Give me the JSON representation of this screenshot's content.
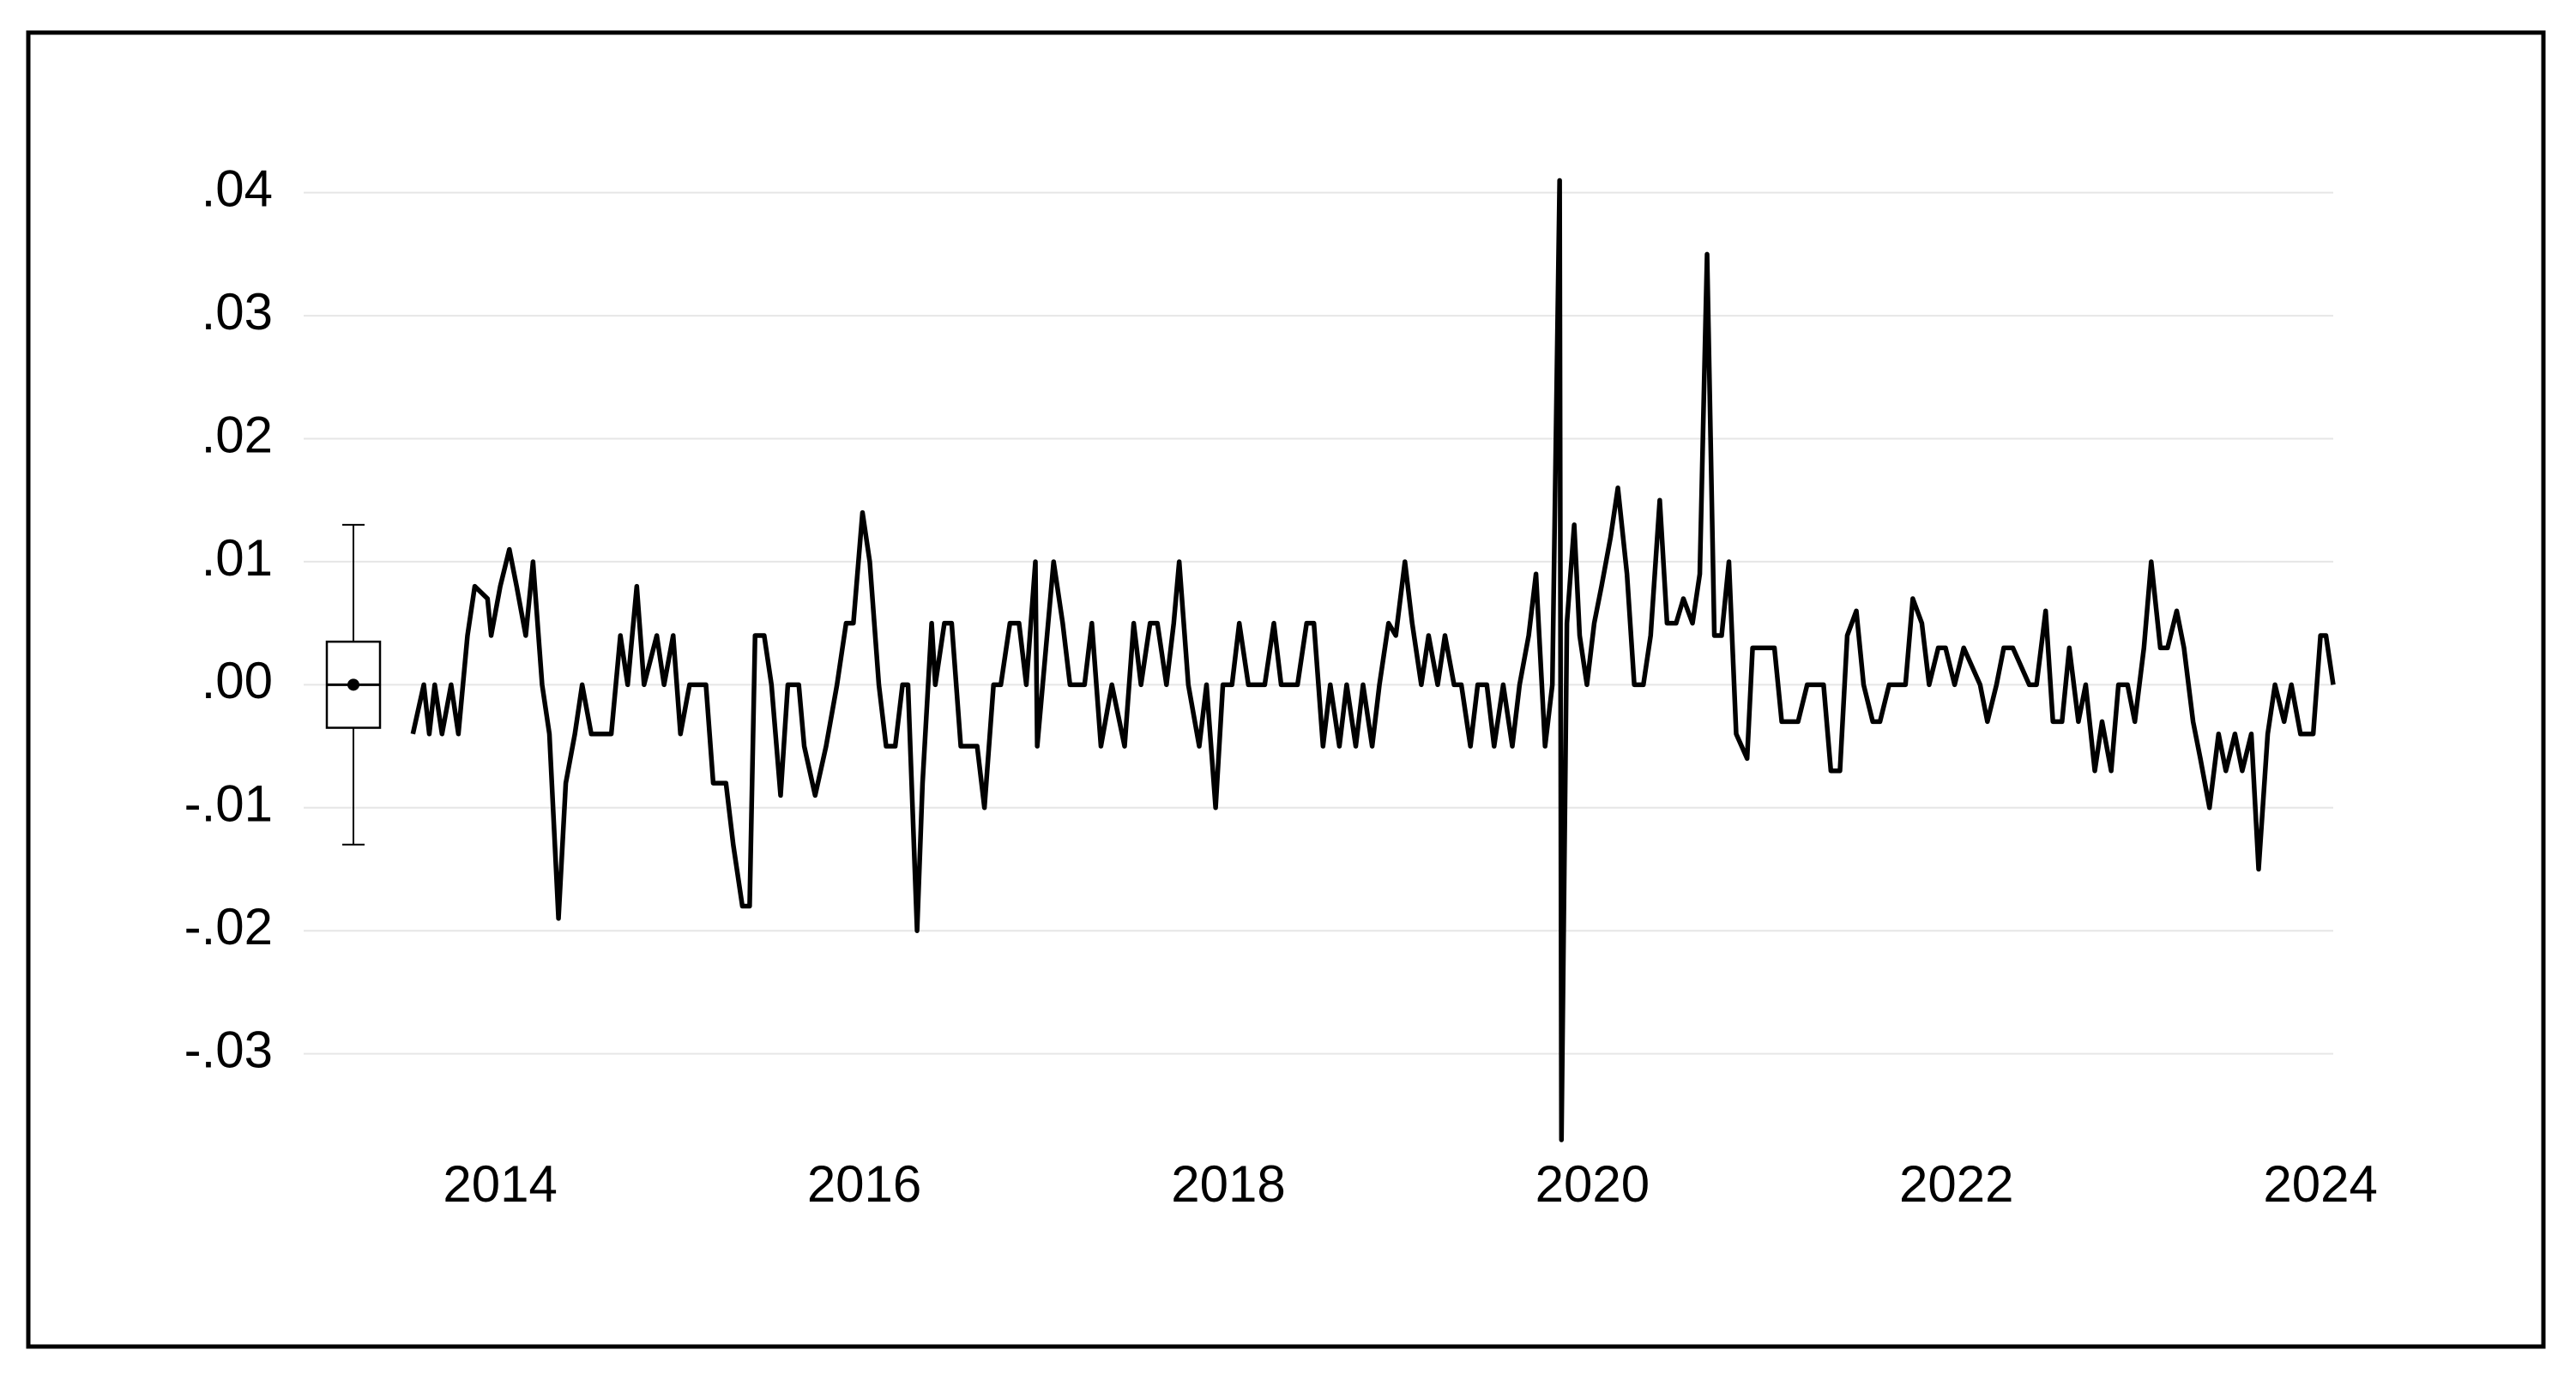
{
  "chart_data": {
    "type": "line",
    "color": "#000000",
    "grid": true,
    "xlim": [
      2012.92,
      2024.07
    ],
    "xticks": [
      2014,
      2016,
      2018,
      2020,
      2022,
      2024
    ],
    "ylim": [
      -0.037,
      0.042
    ],
    "yticks": [
      {
        "value": -0.03,
        "label": "-.03"
      },
      {
        "value": -0.02,
        "label": "-.02"
      },
      {
        "value": -0.01,
        "label": "-.01"
      },
      {
        "value": 0,
        "label": ".00"
      },
      {
        "value": 0.01,
        "label": ".01"
      },
      {
        "value": 0.02,
        "label": ".02"
      },
      {
        "value": 0.03,
        "label": ".03"
      },
      {
        "value": 0.04,
        "label": ".04"
      }
    ],
    "boxplot": {
      "whisker_low": -0.013,
      "q1": -0.0035,
      "median": 0,
      "q3": 0.0035,
      "whisker_high": 0.013,
      "mean": 0
    },
    "x": [
      2013.52,
      2013.58,
      2013.61,
      2013.64,
      2013.68,
      2013.73,
      2013.77,
      2013.82,
      2013.86,
      2013.93,
      2013.95,
      2014.0,
      2014.05,
      2014.09,
      2014.14,
      2014.18,
      2014.23,
      2014.27,
      2014.32,
      2014.36,
      2014.41,
      2014.45,
      2014.5,
      2014.61,
      2014.66,
      2014.7,
      2014.75,
      2014.79,
      2014.86,
      2014.9,
      2014.95,
      2014.99,
      2015.04,
      2015.13,
      2015.17,
      2015.24,
      2015.28,
      2015.33,
      2015.37,
      2015.4,
      2015.45,
      2015.49,
      2015.54,
      2015.58,
      2015.64,
      2015.67,
      2015.73,
      2015.79,
      2015.85,
      2015.9,
      2015.94,
      2015.99,
      2016.03,
      2016.08,
      2016.12,
      2016.17,
      2016.21,
      2016.24,
      2016.29,
      2016.32,
      2016.37,
      2016.39,
      2016.44,
      2016.48,
      2016.53,
      2016.57,
      2016.62,
      2016.66,
      2016.71,
      2016.75,
      2016.8,
      2016.85,
      2016.89,
      2016.94,
      2016.95,
      2017.01,
      2017.04,
      2017.09,
      2017.13,
      2017.21,
      2017.25,
      2017.3,
      2017.36,
      2017.43,
      2017.48,
      2017.52,
      2017.57,
      2017.61,
      2017.66,
      2017.7,
      2017.73,
      2017.78,
      2017.84,
      2017.88,
      2017.93,
      2017.97,
      2018.02,
      2018.06,
      2018.11,
      2018.2,
      2018.25,
      2018.29,
      2018.38,
      2018.43,
      2018.47,
      2018.52,
      2018.56,
      2018.61,
      2018.65,
      2018.7,
      2018.74,
      2018.79,
      2018.83,
      2018.88,
      2018.92,
      2018.97,
      2019.01,
      2019.06,
      2019.1,
      2019.15,
      2019.19,
      2019.24,
      2019.28,
      2019.33,
      2019.37,
      2019.42,
      2019.46,
      2019.51,
      2019.56,
      2019.6,
      2019.65,
      2019.69,
      2019.74,
      2019.78,
      2019.82,
      2019.83,
      2019.86,
      2019.9,
      2019.93,
      2019.97,
      2020.01,
      2020.05,
      2020.1,
      2020.14,
      2020.19,
      2020.23,
      2020.28,
      2020.32,
      2020.37,
      2020.41,
      2020.46,
      2020.5,
      2020.55,
      2020.59,
      2020.63,
      2020.67,
      2020.71,
      2020.75,
      2020.79,
      2020.85,
      2020.88,
      2020.93,
      2021.0,
      2021.04,
      2021.13,
      2021.18,
      2021.27,
      2021.31,
      2021.36,
      2021.4,
      2021.45,
      2021.49,
      2021.54,
      2021.58,
      2021.63,
      2021.72,
      2021.76,
      2021.81,
      2021.85,
      2021.9,
      2021.94,
      2021.99,
      2022.04,
      2022.13,
      2022.17,
      2022.22,
      2022.26,
      2022.31,
      2022.4,
      2022.44,
      2022.49,
      2022.53,
      2022.58,
      2022.62,
      2022.67,
      2022.71,
      2022.76,
      2022.8,
      2022.85,
      2022.89,
      2022.94,
      2022.98,
      2023.03,
      2023.07,
      2023.12,
      2023.16,
      2023.21,
      2023.25,
      2023.3,
      2023.34,
      2023.39,
      2023.44,
      2023.48,
      2023.53,
      2023.57,
      2023.62,
      2023.66,
      2023.71,
      2023.75,
      2023.8,
      2023.84,
      2023.89,
      2023.96,
      2024.0,
      2024.03,
      2024.07
    ],
    "values": [
      -0.004,
      0,
      -0.004,
      0,
      -0.004,
      0,
      -0.004,
      0.004,
      0.008,
      0.007,
      0.004,
      0.008,
      0.011,
      0.008,
      0.004,
      0.01,
      0,
      -0.004,
      -0.019,
      -0.008,
      -0.004,
      0,
      -0.004,
      -0.004,
      0.004,
      0,
      0.008,
      0,
      0.004,
      0,
      0.004,
      -0.004,
      0,
      0,
      -0.008,
      -0.008,
      -0.013,
      -0.018,
      -0.018,
      0.004,
      0.004,
      0,
      -0.009,
      0,
      0,
      -0.005,
      -0.009,
      -0.005,
      0,
      0.005,
      0.005,
      0.014,
      0.01,
      0,
      -0.005,
      -0.005,
      0,
      0,
      -0.02,
      -0.008,
      0.005,
      0,
      0.005,
      0.005,
      -0.005,
      -0.005,
      -0.005,
      -0.01,
      0,
      0,
      0.005,
      0.005,
      0,
      0.01,
      -0.005,
      0.005,
      0.01,
      0.005,
      0,
      0,
      0.005,
      -0.005,
      0,
      -0.005,
      0.005,
      0,
      0.005,
      0.005,
      0,
      0.005,
      0.01,
      0,
      -0.005,
      0,
      -0.01,
      0,
      0,
      0.005,
      0,
      0,
      0.005,
      0,
      0,
      0.005,
      0.005,
      -0.005,
      0,
      -0.005,
      0,
      -0.005,
      0,
      -0.005,
      0,
      0.005,
      0.004,
      0.01,
      0.005,
      0,
      0.004,
      0,
      0.004,
      0,
      0,
      -0.005,
      0,
      0,
      -0.005,
      0,
      -0.005,
      0,
      0.004,
      0.009,
      -0.005,
      0,
      0.041,
      -0.037,
      0.005,
      0.013,
      0.004,
      0,
      0.005,
      0.008,
      0.012,
      0.016,
      0.009,
      0,
      0,
      0.004,
      0.015,
      0.005,
      0.005,
      0.007,
      0.005,
      0.009,
      0.035,
      0.004,
      0.004,
      0.01,
      -0.004,
      -0.006,
      0.003,
      0.003,
      0.003,
      -0.003,
      -0.003,
      0,
      0,
      -0.007,
      -0.007,
      0.004,
      0.006,
      0,
      -0.003,
      -0.003,
      0,
      0,
      0.007,
      0.005,
      0,
      0.003,
      0.003,
      0,
      0.003,
      0,
      -0.003,
      0,
      0.003,
      0.003,
      0,
      0,
      0.006,
      -0.003,
      -0.003,
      0.003,
      -0.003,
      0,
      -0.007,
      -0.003,
      -0.007,
      0,
      0,
      -0.003,
      0.003,
      0.01,
      0.003,
      0.003,
      0.006,
      0.003,
      -0.003,
      -0.006,
      -0.01,
      -0.004,
      -0.007,
      -0.004,
      -0.007,
      -0.004,
      -0.015,
      -0.004,
      0,
      -0.003,
      0,
      -0.004,
      -0.004,
      0.004,
      0.004,
      0
    ]
  }
}
